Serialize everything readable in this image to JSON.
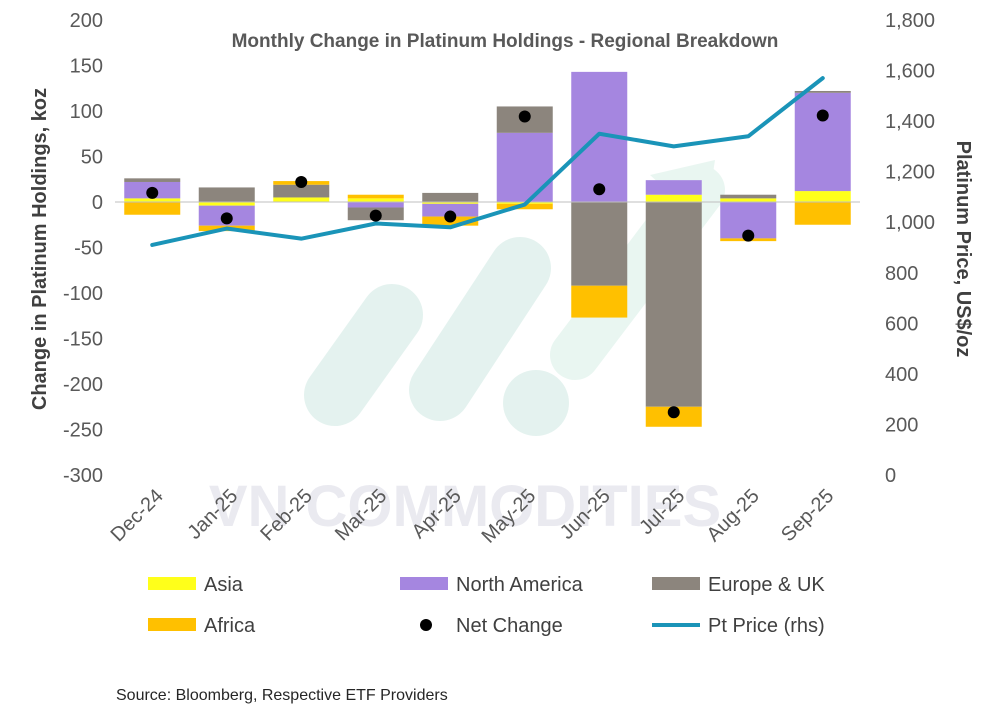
{
  "chart_data": {
    "type": "bar",
    "title": "Monthly Change in Platinum Holdings - Regional Breakdown",
    "ylabel": "Change in Platinum Holdings, koz",
    "y2label": "Platinum Price, US$/oz",
    "ylim": [
      -300,
      200
    ],
    "yticks": [
      "200",
      "150",
      "100",
      "50",
      "0",
      "-50",
      "-100",
      "-150",
      "-200",
      "-250",
      "-300"
    ],
    "y2lim": [
      0,
      1800
    ],
    "y2ticks": [
      "1,800",
      "1,600",
      "1,400",
      "1,200",
      "1,000",
      "800",
      "600",
      "400",
      "200",
      "0"
    ],
    "stacked": true,
    "categories": [
      "Dec-24",
      "Jan-25",
      "Feb-25",
      "Mar-25",
      "Apr-25",
      "May-25",
      "Jun-25",
      "Jul-25",
      "Aug-25",
      "Sep-25"
    ],
    "series": [
      {
        "name": "Asia",
        "kind": "bar",
        "color": "#ffff1a",
        "values": [
          4,
          -4,
          5,
          4,
          -2,
          -2,
          0,
          8,
          4,
          12
        ]
      },
      {
        "name": "North America",
        "kind": "bar",
        "color": "#a586e0",
        "values": [
          18,
          -22,
          0,
          -6,
          -14,
          76,
          143,
          16,
          -40,
          108
        ]
      },
      {
        "name": "Europe & UK",
        "kind": "bar",
        "color": "#8c857d",
        "values": [
          4,
          16,
          14,
          -14,
          10,
          29,
          -92,
          -225,
          4,
          2
        ]
      },
      {
        "name": "Africa",
        "kind": "bar",
        "color": "#ffc000",
        "values": [
          -14,
          -6,
          4,
          4,
          -10,
          -6,
          -35,
          -22,
          -3,
          -25
        ]
      },
      {
        "name": "Net Change",
        "kind": "dot",
        "color": "#000000",
        "values": [
          10,
          -18,
          22,
          -15,
          -16,
          94,
          14,
          -231,
          -37,
          95
        ]
      },
      {
        "name": "Pt Price (rhs)",
        "kind": "line",
        "axis": "right",
        "color": "#1a94b8",
        "values": [
          910,
          975,
          935,
          995,
          980,
          1070,
          1350,
          1300,
          1340,
          1570
        ]
      }
    ],
    "legend": {
      "position": "bottom",
      "items": [
        "Asia",
        "North America",
        "Europe & UK",
        "Africa",
        "Net Change",
        "Pt Price (rhs)"
      ]
    },
    "grid": false
  },
  "watermark": {
    "text": "VN COMMODITIES"
  },
  "source": "Source: Bloomberg, Respective ETF Providers"
}
